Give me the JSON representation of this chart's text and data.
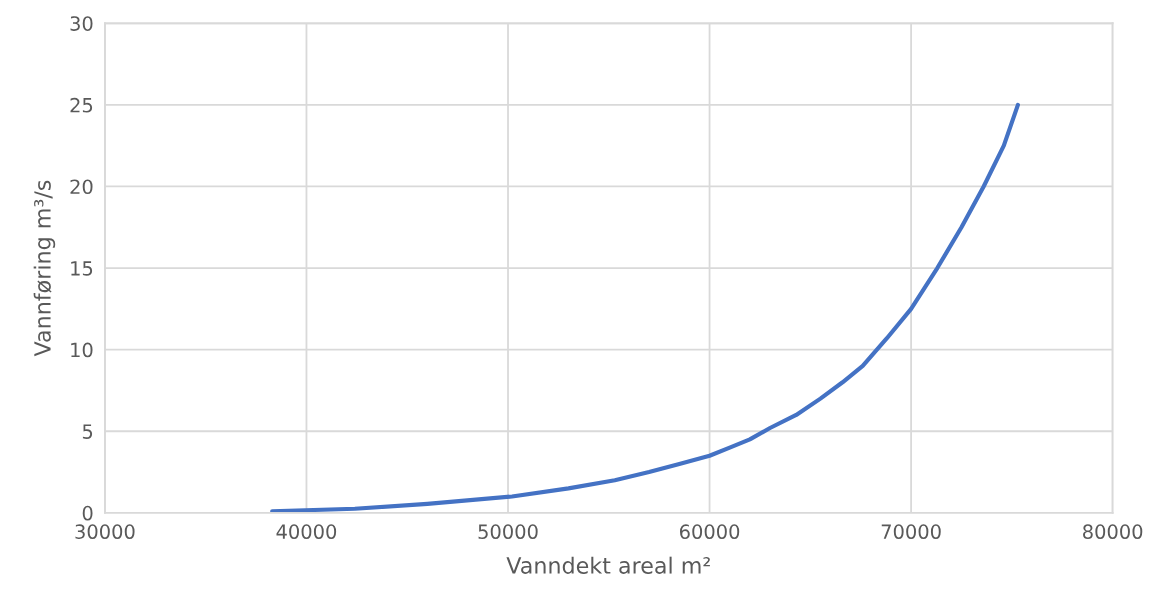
{
  "chart_data": {
    "type": "line",
    "xlabel": "Vanndekt areal m²",
    "ylabel": "Vannføring m³/s",
    "series": [
      {
        "color": "#4472c4",
        "x": [
          38300,
          42400,
          46000,
          50200,
          53000,
          55300,
          57000,
          58500,
          60000,
          61000,
          62000,
          63000,
          64300,
          65500,
          66600,
          67600,
          68800,
          70000,
          71300,
          72500,
          73600,
          74600,
          75300
        ],
        "values": [
          0.1,
          0.25,
          0.55,
          1.0,
          1.5,
          2.0,
          2.5,
          3.0,
          3.5,
          4.0,
          4.5,
          5.2,
          6.0,
          7.0,
          8.0,
          9.0,
          10.7,
          12.5,
          15.0,
          17.5,
          20.0,
          22.5,
          25.0
        ]
      }
    ],
    "xlim": [
      30000,
      80000
    ],
    "xticks": [
      30000,
      40000,
      50000,
      60000,
      70000,
      80000
    ],
    "ylim": [
      0,
      30
    ],
    "yticks": [
      0,
      5,
      10,
      15,
      20,
      25,
      30
    ],
    "grid": true,
    "marker": "none",
    "line_style": "solid"
  }
}
